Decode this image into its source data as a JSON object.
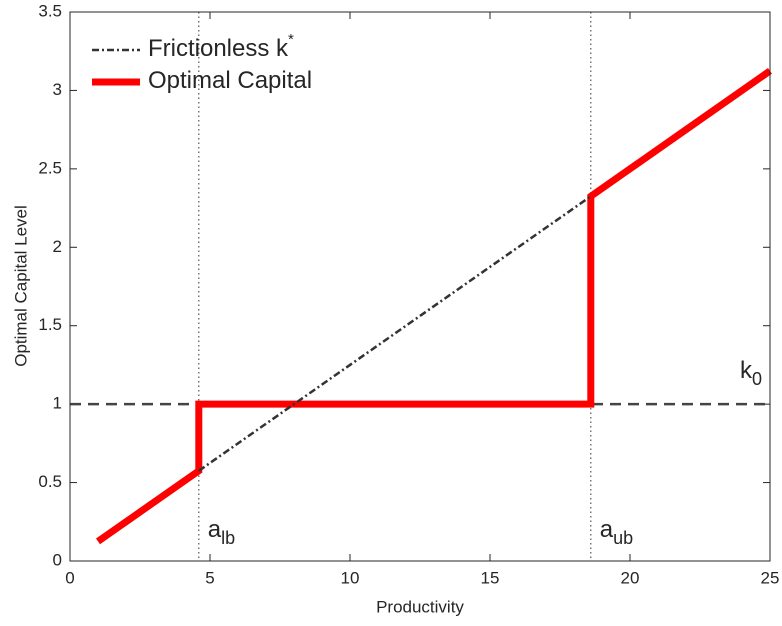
{
  "chart_data": {
    "type": "line",
    "xlabel": "Productivity",
    "ylabel": "Optimal Capital Level",
    "xlim": [
      0,
      25
    ],
    "ylim": [
      0,
      3.5
    ],
    "xticks": [
      0,
      5,
      10,
      15,
      20,
      25
    ],
    "yticks": [
      0,
      0.5,
      1,
      1.5,
      2,
      2.5,
      3,
      3.5
    ],
    "grid": false,
    "legend": "upper left",
    "series": [
      {
        "name": "Frictionless k",
        "superscript": "*",
        "color": "#333333",
        "style": "dashdot",
        "x": [
          4.6,
          18.6
        ],
        "values": [
          0.575,
          2.325
        ]
      },
      {
        "name": "Optimal Capital",
        "color": "#ff0000",
        "style": "solid",
        "x": [
          1,
          4.6,
          4.6,
          18.6,
          18.6,
          25
        ],
        "values": [
          0.125,
          0.575,
          1,
          1,
          2.325,
          3.125
        ]
      }
    ],
    "thresholds": [
      {
        "value": 4.6,
        "label": "a",
        "subscript": "lb"
      },
      {
        "value": 18.6,
        "label": "a",
        "subscript": "ub"
      }
    ],
    "reference_line": {
      "value": 1,
      "label": "k",
      "subscript": "0"
    }
  }
}
